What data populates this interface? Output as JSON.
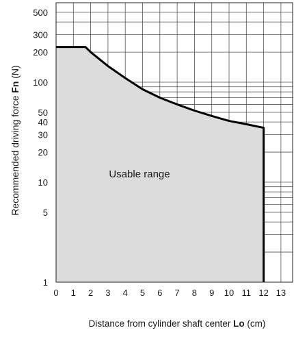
{
  "chart_data": {
    "type": "area",
    "ylabel_prefix": "Recommended driving force ",
    "ylabel_symbol": "Fn",
    "ylabel_unit": " (N)",
    "xlabel_prefix": "Distance from cylinder shaft center ",
    "xlabel_symbol": "Lo",
    "xlabel_unit": " (cm)",
    "annotation": "Usable range",
    "x_scale": "linear",
    "y_scale": "log",
    "xlim": [
      0,
      13
    ],
    "ylim": [
      1,
      600
    ],
    "x_ticks": [
      "0",
      "1",
      "2",
      "3",
      "4",
      "5",
      "6",
      "7",
      "8",
      "9",
      "10",
      "11",
      "12",
      "13"
    ],
    "y_tick_labels": [
      {
        "value": 1,
        "label": "1"
      },
      {
        "value": 5,
        "label": "5"
      },
      {
        "value": 10,
        "label": "10"
      },
      {
        "value": 20,
        "label": "20"
      },
      {
        "value": 30,
        "label": "30"
      },
      {
        "value": 40,
        "label": "40"
      },
      {
        "value": 50,
        "label": "50"
      },
      {
        "value": 100,
        "label": "100"
      },
      {
        "value": 200,
        "label": "200"
      },
      {
        "value": 300,
        "label": "300"
      },
      {
        "value": 500,
        "label": "500"
      }
    ],
    "y_gridlines": [
      1,
      2,
      3,
      4,
      5,
      6,
      7,
      8,
      9,
      10,
      20,
      30,
      40,
      50,
      60,
      70,
      80,
      90,
      100,
      200,
      300,
      400,
      500
    ],
    "x_gridlines": [
      1,
      2,
      3,
      4,
      5,
      6,
      7,
      8,
      9,
      10,
      11,
      12,
      13
    ],
    "grid": true,
    "fill_color": "#dcdcdc",
    "line_color": "#000000",
    "series": [
      {
        "x": [
          0,
          1.7,
          2,
          3,
          4,
          5,
          6,
          7,
          8,
          9,
          10,
          11,
          12,
          12
        ],
        "y": [
          225,
          225,
          200,
          145,
          110,
          85,
          70,
          60,
          52,
          46,
          41,
          38,
          35,
          1
        ]
      }
    ]
  }
}
